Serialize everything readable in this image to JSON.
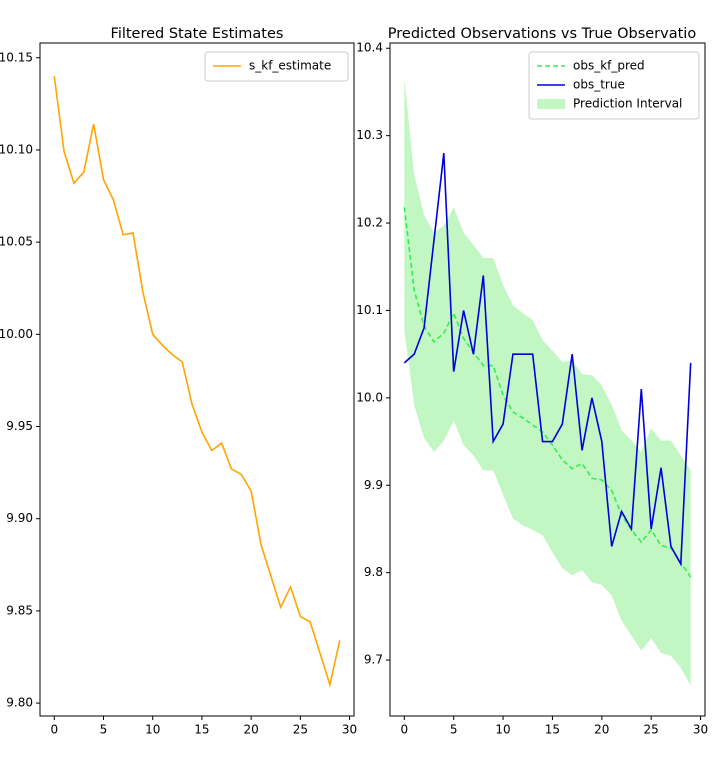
{
  "chart_data": [
    {
      "type": "line",
      "title": "Filtered State Estimates",
      "x": [
        0,
        1,
        2,
        3,
        4,
        5,
        6,
        7,
        8,
        9,
        10,
        11,
        12,
        13,
        14,
        15,
        16,
        17,
        18,
        19,
        20,
        21,
        22,
        23,
        24,
        25,
        26,
        27,
        28,
        29
      ],
      "series": [
        {
          "name": "s_kf_estimate",
          "color": "#ffa500",
          "style": "solid",
          "values": [
            10.14,
            10.099,
            10.082,
            10.088,
            10.114,
            10.084,
            10.073,
            10.054,
            10.055,
            10.023,
            10.0,
            9.994,
            9.989,
            9.985,
            9.962,
            9.947,
            9.937,
            9.941,
            9.927,
            9.924,
            9.915,
            9.886,
            9.869,
            9.852,
            9.863,
            9.847,
            9.844,
            9.827,
            9.81,
            9.834
          ]
        }
      ],
      "xlim": [
        -1.45,
        30.45
      ],
      "xticks": [
        0,
        5,
        10,
        15,
        20,
        25,
        30
      ],
      "ylim": [
        9.793,
        10.158
      ],
      "yticks": [
        {
          "value": 9.8,
          "label": "9.80"
        },
        9.85,
        {
          "value": 9.9,
          "label": "9.90"
        },
        9.95,
        {
          "value": 10,
          "label": "10.00"
        },
        10.05,
        {
          "value": 10.1,
          "label": "10.10"
        },
        10.15
      ],
      "legend": "upper right"
    },
    {
      "type": "line",
      "title": "Predicted Observations vs True Observatio",
      "x": [
        0,
        1,
        2,
        3,
        4,
        5,
        6,
        7,
        8,
        9,
        10,
        11,
        12,
        13,
        14,
        15,
        16,
        17,
        18,
        19,
        20,
        21,
        22,
        23,
        24,
        25,
        26,
        27,
        28,
        29
      ],
      "series": [
        {
          "name": "obs_kf_pred",
          "color": "#33ee55",
          "style": "dashed",
          "values": [
            10.218,
            10.123,
            10.082,
            10.064,
            10.074,
            10.097,
            10.068,
            10.052,
            10.037,
            10.037,
            10.003,
            9.984,
            9.977,
            9.969,
            9.961,
            9.946,
            9.929,
            9.919,
            9.925,
            9.908,
            9.906,
            9.894,
            9.866,
            9.849,
            9.835,
            9.849,
            9.831,
            9.828,
            9.811,
            9.795
          ]
        },
        {
          "name": "obs_true",
          "color": "#0000dd",
          "style": "solid",
          "values": [
            10.04,
            10.05,
            10.08,
            10.18,
            10.28,
            10.03,
            10.1,
            10.05,
            10.14,
            9.95,
            9.97,
            10.05,
            10.05,
            10.05,
            9.95,
            9.95,
            9.97,
            10.05,
            9.94,
            10.0,
            9.95,
            9.83,
            9.87,
            9.85,
            10.01,
            9.85,
            9.92,
            9.83,
            9.81,
            10.04
          ]
        },
        {
          "name": "Prediction Interval",
          "color": "#90ee90",
          "style": "band",
          "upper": [
            10.366,
            10.255,
            10.209,
            10.189,
            10.197,
            10.218,
            10.189,
            10.175,
            10.16,
            10.16,
            10.129,
            10.106,
            10.097,
            10.089,
            10.066,
            10.054,
            10.041,
            10.043,
            10.027,
            10.026,
            10.014,
            9.992,
            9.963,
            9.951,
            9.938,
            9.965,
            9.951,
            9.951,
            9.934,
            9.917
          ],
          "lower": [
            10.077,
            9.992,
            9.954,
            9.938,
            9.951,
            9.974,
            9.946,
            9.934,
            9.917,
            9.917,
            9.889,
            9.862,
            9.854,
            9.849,
            9.843,
            9.823,
            9.805,
            9.797,
            9.803,
            9.789,
            9.786,
            9.774,
            9.745,
            9.728,
            9.711,
            9.725,
            9.708,
            9.705,
            9.691,
            9.671
          ]
        }
      ],
      "xlim": [
        -1.45,
        30.45
      ],
      "xticks": [
        0,
        5,
        10,
        15,
        20,
        25,
        30
      ],
      "ylim": [
        9.636,
        10.406
      ],
      "yticks": [
        9.7,
        9.8,
        9.9,
        {
          "value": 10,
          "label": "10.0"
        },
        10.1,
        10.2,
        10.3,
        10.4
      ],
      "legend": "upper right"
    }
  ]
}
